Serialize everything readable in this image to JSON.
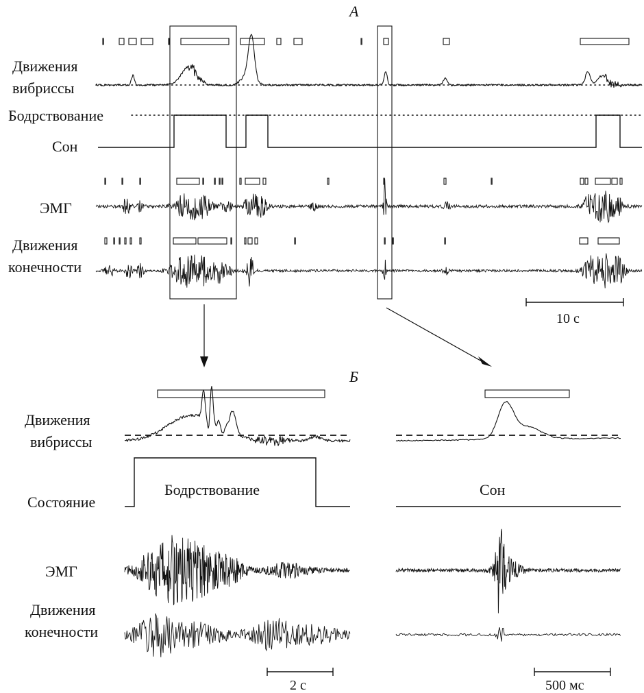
{
  "panel_a": {
    "label": "А",
    "rows": {
      "whisker": {
        "label_line1": "Движения",
        "label_line2": "вибриссы"
      },
      "wake": {
        "label": "Бодрствование"
      },
      "sleep": {
        "label": "Сон"
      },
      "emg": {
        "label": "ЭМГ"
      },
      "limb": {
        "label_line1": "Движения",
        "label_line2": "конечности"
      }
    },
    "scale_bar": {
      "label": "10 с"
    }
  },
  "panel_b": {
    "label": "Б",
    "left": {
      "whisker": {
        "label_line1": "Движения",
        "label_line2": "вибриссы"
      },
      "state": {
        "label": "Состояние",
        "value_label": "Бодрствование"
      },
      "emg": {
        "label": "ЭМГ"
      },
      "limb": {
        "label_line1": "Движения",
        "label_line2": "конечности"
      },
      "scale_bar": {
        "label": "2 с"
      }
    },
    "right": {
      "state": {
        "value_label": "Сон"
      },
      "scale_bar": {
        "label": "500 мс"
      }
    }
  },
  "colors": {
    "ink": "#111111",
    "background": "#ffffff"
  }
}
